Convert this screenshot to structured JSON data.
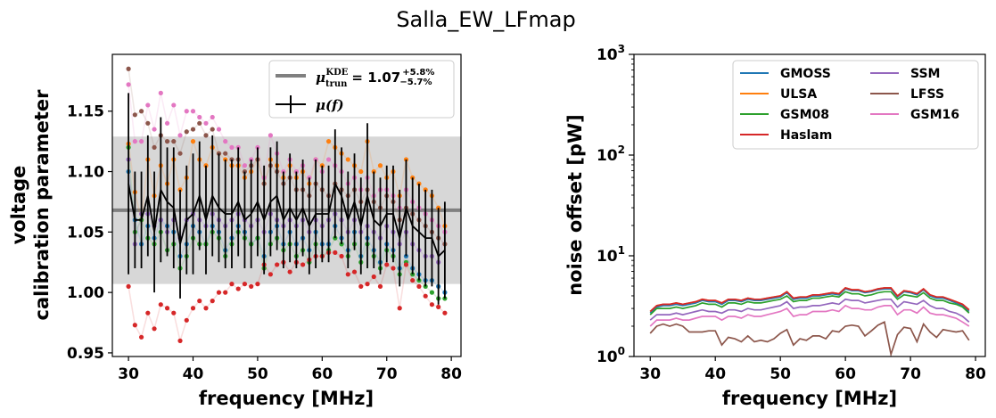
{
  "title": "Salla_EW_LFmap",
  "colors": {
    "GMOSS": "#1f77b4",
    "ULSA": "#ff7f0e",
    "GSM08": "#2ca02c",
    "Haslam": "#d62728",
    "SSM": "#9467bd",
    "LFSS": "#8c564b",
    "GSM16": "#e377c2",
    "band": "#d3d3d3",
    "kde": "#808080",
    "mu": "#000000"
  },
  "chart_data": [
    {
      "type": "scatter",
      "xlabel": "frequency [MHz]",
      "ylabel_lines": [
        "voltage",
        "calibration parameter"
      ],
      "xlim": [
        27.5,
        81.5
      ],
      "ylim": [
        0.947,
        1.197
      ],
      "xticks": [
        30,
        40,
        50,
        60,
        70,
        80
      ],
      "yticks": [
        0.95,
        1.0,
        1.05,
        1.1,
        1.15
      ],
      "ytick_labels": [
        "0.95",
        "1.00",
        "1.05",
        "1.10",
        "1.15"
      ],
      "kde": {
        "value": 1.068,
        "band": [
          1.007,
          1.129
        ]
      },
      "legend": {
        "kde_label": {
          "main": "μ",
          "sub": "trun",
          "sup": "KDE",
          "eq": "= 1.07",
          "plus": "+5.8%",
          "minus": "−5.7%"
        },
        "mu_label": "μ(f)"
      },
      "x": [
        30,
        31,
        32,
        33,
        34,
        35,
        36,
        37,
        38,
        39,
        40,
        41,
        42,
        43,
        44,
        45,
        46,
        47,
        48,
        49,
        50,
        51,
        52,
        53,
        54,
        55,
        56,
        57,
        58,
        59,
        60,
        61,
        62,
        63,
        64,
        65,
        66,
        67,
        68,
        69,
        70,
        71,
        72,
        73,
        74,
        75,
        76,
        77,
        78,
        79
      ],
      "series": [
        {
          "name": "GMOSS",
          "values": [
            1.1,
            1.06,
            1.04,
            1.055,
            1.045,
            1.06,
            1.055,
            1.05,
            1.03,
            1.04,
            1.055,
            1.05,
            1.04,
            1.055,
            1.05,
            1.035,
            1.045,
            1.055,
            1.05,
            1.04,
            1.045,
            1.03,
            1.05,
            1.055,
            1.04,
            1.05,
            1.04,
            1.045,
            1.035,
            1.05,
            1.04,
            1.04,
            1.055,
            1.045,
            1.035,
            1.05,
            1.03,
            1.045,
            1.035,
            1.025,
            1.04,
            1.035,
            1.02,
            1.03,
            1.02,
            1.015,
            1.01,
            1.01,
            1.005,
            1.0
          ]
        },
        {
          "name": "ULSA",
          "values": [
            1.123,
            1.083,
            1.06,
            1.11,
            1.08,
            1.105,
            1.09,
            1.11,
            1.085,
            1.095,
            1.125,
            1.11,
            1.105,
            1.12,
            1.115,
            1.11,
            1.105,
            1.105,
            1.095,
            1.1,
            1.11,
            1.09,
            1.11,
            1.105,
            1.095,
            1.105,
            1.095,
            1.1,
            1.09,
            1.11,
            1.105,
            1.125,
            1.12,
            1.115,
            1.11,
            1.105,
            1.1,
            1.125,
            1.1,
            1.105,
            1.095,
            1.1,
            1.08,
            1.11,
            1.095,
            1.09,
            1.085,
            1.08,
            1.07,
            1.055
          ]
        },
        {
          "name": "GSM08",
          "values": [
            1.12,
            1.05,
            1.06,
            1.045,
            1.04,
            1.05,
            1.035,
            1.04,
            1.02,
            1.03,
            1.045,
            1.04,
            1.04,
            1.05,
            1.045,
            1.03,
            1.04,
            1.05,
            1.045,
            1.04,
            1.045,
            1.02,
            1.04,
            1.045,
            1.035,
            1.04,
            1.03,
            1.035,
            1.025,
            1.04,
            1.03,
            1.035,
            1.045,
            1.04,
            1.03,
            1.04,
            1.025,
            1.04,
            1.03,
            1.02,
            1.035,
            1.03,
            1.015,
            1.025,
            1.015,
            1.01,
            1.005,
            1.0,
            0.995,
            0.995
          ]
        },
        {
          "name": "Haslam",
          "values": [
            1.005,
            0.973,
            0.963,
            0.983,
            0.97,
            0.99,
            0.987,
            0.983,
            0.96,
            0.977,
            0.987,
            0.993,
            0.987,
            0.993,
            1.0,
            1.0,
            1.007,
            1.003,
            1.007,
            1.005,
            1.007,
            1.023,
            1.015,
            1.023,
            1.025,
            1.017,
            1.025,
            1.023,
            1.027,
            1.03,
            1.03,
            1.033,
            1.033,
            1.03,
            1.015,
            1.017,
            1.005,
            1.007,
            1.013,
            1.005,
            1.023,
            1.02,
            0.987,
            1.023,
            1.01,
            1.005,
            0.997,
            0.99,
            0.988,
            0.983
          ]
        },
        {
          "name": "SSM",
          "values": [
            1.11,
            1.04,
            1.065,
            1.065,
            1.055,
            1.06,
            1.05,
            1.06,
            1.045,
            1.06,
            1.065,
            1.06,
            1.055,
            1.065,
            1.06,
            1.055,
            1.06,
            1.065,
            1.06,
            1.055,
            1.06,
            1.05,
            1.065,
            1.06,
            1.055,
            1.06,
            1.055,
            1.06,
            1.05,
            1.06,
            1.055,
            1.06,
            1.065,
            1.06,
            1.05,
            1.06,
            1.05,
            1.055,
            1.05,
            1.045,
            1.055,
            1.05,
            1.04,
            1.05,
            1.04,
            1.035,
            1.03,
            1.03,
            1.025,
            1.05
          ]
        },
        {
          "name": "LFSS",
          "values": [
            1.185,
            1.147,
            1.15,
            1.14,
            1.12,
            1.13,
            1.125,
            1.125,
            1.115,
            1.133,
            1.135,
            1.14,
            1.13,
            1.135,
            1.115,
            1.115,
            1.11,
            1.11,
            1.1,
            1.105,
            1.11,
            1.09,
            1.105,
            1.1,
            1.09,
            1.095,
            1.085,
            1.085,
            1.08,
            1.09,
            1.085,
            1.08,
            1.09,
            1.085,
            1.08,
            1.085,
            1.075,
            1.085,
            1.075,
            1.07,
            1.08,
            1.075,
            1.06,
            1.07,
            1.065,
            1.06,
            1.055,
            1.05,
            1.045,
            1.04
          ]
        },
        {
          "name": "GSM16",
          "values": [
            1.172,
            1.125,
            1.125,
            1.155,
            1.135,
            1.165,
            1.14,
            1.155,
            1.13,
            1.15,
            1.15,
            1.145,
            1.14,
            1.145,
            1.135,
            1.125,
            1.12,
            1.12,
            1.105,
            1.11,
            1.12,
            1.095,
            1.13,
            1.115,
            1.1,
            1.11,
            1.1,
            1.105,
            1.095,
            1.11,
            1.1,
            1.11,
            1.105,
            1.1,
            1.09,
            1.095,
            1.085,
            1.095,
            1.08,
            1.085,
            1.085,
            1.08,
            1.07,
            1.085,
            1.075,
            1.07,
            1.065,
            1.06,
            1.055,
            1.05
          ]
        }
      ],
      "mu": [
        1.09,
        1.06,
        1.06,
        1.08,
        1.05,
        1.085,
        1.075,
        1.07,
        1.04,
        1.06,
        1.065,
        1.08,
        1.06,
        1.08,
        1.07,
        1.065,
        1.065,
        1.075,
        1.06,
        1.065,
        1.075,
        1.06,
        1.075,
        1.08,
        1.06,
        1.07,
        1.06,
        1.07,
        1.055,
        1.065,
        1.065,
        1.065,
        1.09,
        1.08,
        1.06,
        1.075,
        1.055,
        1.08,
        1.06,
        1.055,
        1.065,
        1.065,
        1.045,
        1.07,
        1.055,
        1.05,
        1.045,
        1.045,
        1.03,
        1.035
      ],
      "mu_err": [
        0.075,
        0.04,
        0.04,
        0.05,
        0.05,
        0.06,
        0.045,
        0.05,
        0.045,
        0.045,
        0.05,
        0.045,
        0.045,
        0.05,
        0.045,
        0.045,
        0.045,
        0.045,
        0.04,
        0.045,
        0.045,
        0.045,
        0.045,
        0.045,
        0.04,
        0.045,
        0.04,
        0.04,
        0.04,
        0.045,
        0.04,
        0.04,
        0.045,
        0.04,
        0.04,
        0.04,
        0.04,
        0.06,
        0.04,
        0.04,
        0.04,
        0.04,
        0.04,
        0.04,
        0.04,
        0.04,
        0.04,
        0.04,
        0.04,
        0.04
      ]
    },
    {
      "type": "line",
      "xlabel": "frequency [MHz]",
      "ylabel": "noise offset [pW]",
      "yscale": "log",
      "xlim": [
        27.5,
        81.5
      ],
      "ylim": [
        1,
        1000
      ],
      "xticks": [
        30,
        40,
        50,
        60,
        70,
        80
      ],
      "yticks": [
        1,
        10,
        100,
        1000
      ],
      "ytick_labels": [
        {
          "base": "10",
          "exp": "0"
        },
        {
          "base": "10",
          "exp": "1"
        },
        {
          "base": "10",
          "exp": "2"
        },
        {
          "base": "10",
          "exp": "3"
        }
      ],
      "legend_position": "upper right",
      "legend_columns": [
        [
          "GMOSS",
          "ULSA",
          "GSM08",
          "Haslam"
        ],
        [
          "SSM",
          "LFSS",
          "GSM16"
        ]
      ],
      "x": [
        30,
        31,
        32,
        33,
        34,
        35,
        36,
        37,
        38,
        39,
        40,
        41,
        42,
        43,
        44,
        45,
        46,
        47,
        48,
        49,
        50,
        51,
        52,
        53,
        54,
        55,
        56,
        57,
        58,
        59,
        60,
        61,
        62,
        63,
        64,
        65,
        66,
        67,
        68,
        69,
        70,
        71,
        72,
        73,
        74,
        75,
        76,
        77,
        78,
        79
      ],
      "series": [
        {
          "name": "GMOSS",
          "values": [
            2.7,
            3.1,
            3.2,
            3.2,
            3.3,
            3.2,
            3.3,
            3.4,
            3.6,
            3.5,
            3.5,
            3.3,
            3.6,
            3.6,
            3.5,
            3.7,
            3.6,
            3.6,
            3.7,
            3.8,
            3.9,
            4.3,
            3.7,
            3.8,
            3.8,
            4.0,
            4.0,
            4.1,
            4.2,
            4.1,
            4.7,
            4.5,
            4.5,
            4.3,
            4.4,
            4.6,
            4.7,
            4.7,
            3.9,
            4.4,
            4.3,
            4.1,
            4.6,
            4.0,
            3.8,
            3.8,
            3.6,
            3.4,
            3.2,
            2.8
          ]
        },
        {
          "name": "ULSA",
          "values": [
            2.8,
            3.2,
            3.3,
            3.3,
            3.4,
            3.3,
            3.4,
            3.5,
            3.7,
            3.6,
            3.6,
            3.4,
            3.7,
            3.7,
            3.6,
            3.8,
            3.7,
            3.7,
            3.8,
            3.9,
            4.0,
            4.4,
            3.8,
            3.9,
            3.9,
            4.1,
            4.1,
            4.2,
            4.3,
            4.2,
            4.8,
            4.6,
            4.6,
            4.4,
            4.5,
            4.7,
            4.8,
            4.8,
            4.0,
            4.5,
            4.4,
            4.2,
            4.7,
            4.1,
            3.9,
            3.9,
            3.7,
            3.5,
            3.3,
            2.9
          ]
        },
        {
          "name": "GSM08",
          "values": [
            2.6,
            3.0,
            3.0,
            3.0,
            3.1,
            3.0,
            3.1,
            3.2,
            3.4,
            3.3,
            3.3,
            3.1,
            3.4,
            3.4,
            3.3,
            3.5,
            3.4,
            3.4,
            3.5,
            3.6,
            3.7,
            4.0,
            3.5,
            3.6,
            3.6,
            3.8,
            3.8,
            3.9,
            4.0,
            3.9,
            4.4,
            4.2,
            4.2,
            4.0,
            4.1,
            4.3,
            4.4,
            4.4,
            3.7,
            4.1,
            4.0,
            3.9,
            4.3,
            3.8,
            3.6,
            3.6,
            3.4,
            3.3,
            3.1,
            2.7
          ]
        },
        {
          "name": "Haslam",
          "values": [
            2.8,
            3.2,
            3.3,
            3.3,
            3.4,
            3.3,
            3.4,
            3.5,
            3.7,
            3.6,
            3.6,
            3.4,
            3.7,
            3.7,
            3.6,
            3.8,
            3.7,
            3.7,
            3.8,
            3.9,
            4.0,
            4.4,
            3.8,
            3.9,
            3.9,
            4.1,
            4.1,
            4.2,
            4.3,
            4.2,
            4.8,
            4.6,
            4.6,
            4.4,
            4.5,
            4.7,
            4.8,
            4.8,
            4.0,
            4.5,
            4.4,
            4.2,
            4.7,
            4.1,
            3.9,
            3.9,
            3.7,
            3.5,
            3.3,
            2.9
          ]
        },
        {
          "name": "SSM",
          "values": [
            2.3,
            2.6,
            2.6,
            2.6,
            2.7,
            2.6,
            2.7,
            2.8,
            2.9,
            2.8,
            2.8,
            2.7,
            2.9,
            2.9,
            2.8,
            3.0,
            2.9,
            2.9,
            3.0,
            3.1,
            3.2,
            3.5,
            3.0,
            3.1,
            3.1,
            3.2,
            3.2,
            3.3,
            3.4,
            3.3,
            3.7,
            3.6,
            3.6,
            3.4,
            3.5,
            3.6,
            3.7,
            3.7,
            3.1,
            3.5,
            3.4,
            3.3,
            3.6,
            3.2,
            3.0,
            3.0,
            2.8,
            2.7,
            2.5,
            2.2
          ]
        },
        {
          "name": "LFSS",
          "values": [
            1.7,
            2.0,
            2.1,
            2.0,
            2.1,
            2.0,
            1.75,
            1.75,
            1.75,
            1.8,
            1.8,
            1.3,
            1.55,
            1.5,
            1.4,
            1.6,
            1.4,
            1.45,
            1.4,
            1.5,
            1.7,
            1.85,
            1.3,
            1.5,
            1.45,
            1.6,
            1.6,
            1.5,
            1.8,
            1.75,
            2.0,
            2.05,
            2.0,
            1.6,
            1.8,
            2.05,
            2.2,
            1.05,
            1.65,
            1.95,
            1.9,
            1.4,
            2.1,
            1.75,
            1.55,
            1.85,
            1.8,
            1.75,
            1.8,
            1.45
          ]
        },
        {
          "name": "GSM16",
          "values": [
            2.0,
            2.3,
            2.3,
            2.3,
            2.4,
            2.3,
            2.3,
            2.4,
            2.5,
            2.5,
            2.5,
            2.3,
            2.5,
            2.5,
            2.4,
            2.6,
            2.5,
            2.5,
            2.6,
            2.7,
            2.8,
            3.0,
            2.5,
            2.6,
            2.6,
            2.8,
            2.8,
            2.8,
            2.9,
            2.8,
            3.2,
            3.0,
            3.0,
            2.9,
            2.9,
            3.1,
            3.2,
            3.2,
            2.6,
            2.9,
            2.9,
            2.7,
            3.1,
            2.7,
            2.6,
            2.6,
            2.5,
            2.4,
            2.2,
            2.0
          ]
        }
      ]
    }
  ]
}
